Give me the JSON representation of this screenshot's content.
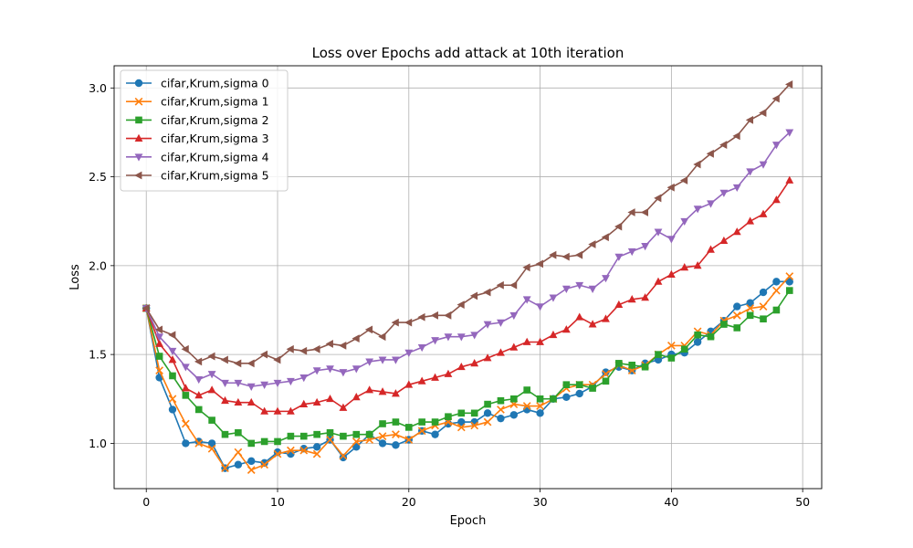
{
  "chart_data": {
    "type": "line",
    "title": "Loss over Epochs add attack at 10th iteration",
    "xlabel": "Epoch",
    "ylabel": "Loss",
    "xlim": [
      -2.45,
      51.45
    ],
    "ylim": [
      0.745,
      3.125
    ],
    "xticks": [
      0,
      10,
      20,
      30,
      40,
      50
    ],
    "yticks": [
      1.0,
      1.5,
      2.0,
      2.5,
      3.0
    ],
    "xtick_labels": [
      "0",
      "10",
      "20",
      "30",
      "40",
      "50"
    ],
    "ytick_labels": [
      "1.0",
      "1.5",
      "2.0",
      "2.5",
      "3.0"
    ],
    "grid": true,
    "legend_position": "top-left",
    "x": [
      0,
      1,
      2,
      3,
      4,
      5,
      6,
      7,
      8,
      9,
      10,
      11,
      12,
      13,
      14,
      15,
      16,
      17,
      18,
      19,
      20,
      21,
      22,
      23,
      24,
      25,
      26,
      27,
      28,
      29,
      30,
      31,
      32,
      33,
      34,
      35,
      36,
      37,
      38,
      39,
      40,
      41,
      42,
      43,
      44,
      45,
      46,
      47,
      48,
      49
    ],
    "series": [
      {
        "name": "cifar,Krum,sigma 0",
        "color": "#1f77b4",
        "marker": "circle",
        "values": [
          1.76,
          1.37,
          1.19,
          1.0,
          1.01,
          1.0,
          0.86,
          0.88,
          0.9,
          0.89,
          0.95,
          0.94,
          0.97,
          0.98,
          1.02,
          0.92,
          0.98,
          1.05,
          1.0,
          0.99,
          1.02,
          1.07,
          1.05,
          1.11,
          1.12,
          1.12,
          1.17,
          1.14,
          1.16,
          1.19,
          1.17,
          1.25,
          1.26,
          1.28,
          1.32,
          1.4,
          1.43,
          1.41,
          1.45,
          1.47,
          1.5,
          1.51,
          1.57,
          1.63,
          1.69,
          1.77,
          1.79,
          1.85,
          1.91,
          1.91
        ]
      },
      {
        "name": "cifar,Krum,sigma 1",
        "color": "#ff7f0e",
        "marker": "x",
        "values": [
          1.76,
          1.41,
          1.25,
          1.11,
          1.0,
          0.97,
          0.86,
          0.95,
          0.85,
          0.88,
          0.94,
          0.96,
          0.96,
          0.94,
          1.02,
          0.93,
          1.01,
          1.02,
          1.04,
          1.05,
          1.02,
          1.07,
          1.1,
          1.12,
          1.09,
          1.1,
          1.12,
          1.19,
          1.22,
          1.21,
          1.21,
          1.25,
          1.31,
          1.33,
          1.33,
          1.39,
          1.44,
          1.41,
          1.44,
          1.5,
          1.55,
          1.55,
          1.63,
          1.61,
          1.69,
          1.72,
          1.76,
          1.77,
          1.86,
          1.94
        ]
      },
      {
        "name": "cifar,Krum,sigma 2",
        "color": "#2ca02c",
        "marker": "square",
        "values": [
          1.76,
          1.49,
          1.38,
          1.27,
          1.19,
          1.13,
          1.05,
          1.06,
          1.0,
          1.01,
          1.01,
          1.04,
          1.04,
          1.05,
          1.06,
          1.04,
          1.05,
          1.05,
          1.11,
          1.12,
          1.09,
          1.12,
          1.12,
          1.15,
          1.17,
          1.17,
          1.22,
          1.24,
          1.25,
          1.3,
          1.25,
          1.25,
          1.33,
          1.33,
          1.31,
          1.35,
          1.45,
          1.44,
          1.43,
          1.5,
          1.48,
          1.53,
          1.61,
          1.6,
          1.67,
          1.65,
          1.72,
          1.7,
          1.75,
          1.86
        ]
      },
      {
        "name": "cifar,Krum,sigma 3",
        "color": "#d62728",
        "marker": "triangle-up",
        "values": [
          1.76,
          1.56,
          1.47,
          1.31,
          1.27,
          1.3,
          1.24,
          1.23,
          1.23,
          1.18,
          1.18,
          1.18,
          1.22,
          1.23,
          1.25,
          1.2,
          1.26,
          1.3,
          1.29,
          1.28,
          1.33,
          1.35,
          1.37,
          1.39,
          1.43,
          1.45,
          1.48,
          1.51,
          1.54,
          1.57,
          1.57,
          1.61,
          1.64,
          1.71,
          1.67,
          1.7,
          1.78,
          1.81,
          1.82,
          1.91,
          1.95,
          1.99,
          2.0,
          2.09,
          2.14,
          2.19,
          2.25,
          2.29,
          2.37,
          2.48
        ]
      },
      {
        "name": "cifar,Krum,sigma 4",
        "color": "#9467bd",
        "marker": "triangle-down",
        "values": [
          1.76,
          1.6,
          1.52,
          1.43,
          1.36,
          1.39,
          1.34,
          1.34,
          1.32,
          1.33,
          1.34,
          1.35,
          1.37,
          1.41,
          1.42,
          1.4,
          1.42,
          1.46,
          1.47,
          1.47,
          1.51,
          1.54,
          1.58,
          1.6,
          1.6,
          1.61,
          1.67,
          1.68,
          1.72,
          1.81,
          1.77,
          1.82,
          1.87,
          1.89,
          1.87,
          1.93,
          2.05,
          2.08,
          2.11,
          2.19,
          2.15,
          2.25,
          2.32,
          2.35,
          2.41,
          2.44,
          2.53,
          2.57,
          2.68,
          2.75
        ]
      },
      {
        "name": "cifar,Krum,sigma 5",
        "color": "#8c564b",
        "marker": "triangle-left",
        "values": [
          1.76,
          1.64,
          1.61,
          1.53,
          1.46,
          1.49,
          1.47,
          1.45,
          1.45,
          1.5,
          1.47,
          1.53,
          1.52,
          1.53,
          1.56,
          1.55,
          1.59,
          1.64,
          1.6,
          1.68,
          1.68,
          1.71,
          1.72,
          1.72,
          1.78,
          1.83,
          1.85,
          1.89,
          1.89,
          1.99,
          2.01,
          2.06,
          2.05,
          2.06,
          2.12,
          2.16,
          2.22,
          2.3,
          2.3,
          2.38,
          2.44,
          2.48,
          2.57,
          2.63,
          2.68,
          2.73,
          2.82,
          2.86,
          2.94,
          3.02
        ]
      }
    ]
  }
}
